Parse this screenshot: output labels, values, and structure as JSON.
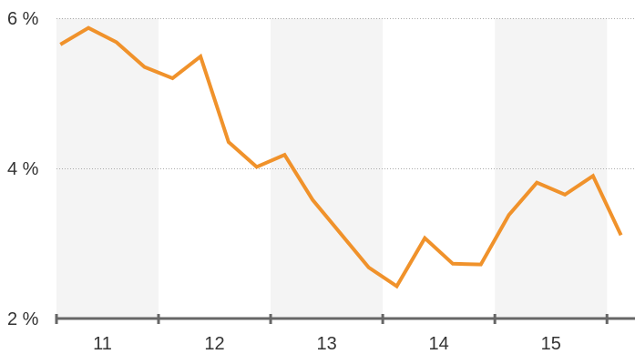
{
  "chart_data": {
    "type": "line",
    "ylim": [
      2,
      6
    ],
    "xlim": [
      10.59,
      15.75
    ],
    "y_ticks": [
      {
        "value": 6,
        "label": "6 %"
      },
      {
        "value": 4,
        "label": "4 %"
      },
      {
        "value": 2,
        "label": "2 %"
      }
    ],
    "x_ticks": [
      {
        "value": 11,
        "label": "11"
      },
      {
        "value": 12,
        "label": "12"
      },
      {
        "value": 13,
        "label": "13"
      },
      {
        "value": 14,
        "label": "14"
      },
      {
        "value": 15,
        "label": "15"
      }
    ],
    "x_bands": [
      {
        "from": 10.59,
        "to": 11.5,
        "shade": true
      },
      {
        "from": 11.5,
        "to": 12.5,
        "shade": false
      },
      {
        "from": 12.5,
        "to": 13.5,
        "shade": true
      },
      {
        "from": 13.5,
        "to": 14.5,
        "shade": false
      },
      {
        "from": 14.5,
        "to": 15.5,
        "shade": true
      },
      {
        "from": 15.5,
        "to": 15.75,
        "shade": false
      }
    ],
    "grid": true,
    "series": [
      {
        "color": "#F0922B",
        "points": [
          [
            10.625,
            5.65
          ],
          [
            10.875,
            5.87
          ],
          [
            11.125,
            5.68
          ],
          [
            11.375,
            5.35
          ],
          [
            11.625,
            5.2
          ],
          [
            11.875,
            5.49
          ],
          [
            12.125,
            4.35
          ],
          [
            12.375,
            4.02
          ],
          [
            12.625,
            4.18
          ],
          [
            12.875,
            3.58
          ],
          [
            13.125,
            3.13
          ],
          [
            13.375,
            2.68
          ],
          [
            13.625,
            2.43
          ],
          [
            13.875,
            3.07
          ],
          [
            14.125,
            2.73
          ],
          [
            14.375,
            2.72
          ],
          [
            14.625,
            3.38
          ],
          [
            14.875,
            3.81
          ],
          [
            15.125,
            3.65
          ],
          [
            15.375,
            3.9
          ],
          [
            15.625,
            3.11
          ]
        ]
      }
    ]
  },
  "colors": {
    "band": "#F4F4F4",
    "grid": "#AAAAAA",
    "axis": "#666666",
    "line": "#F0922B"
  }
}
